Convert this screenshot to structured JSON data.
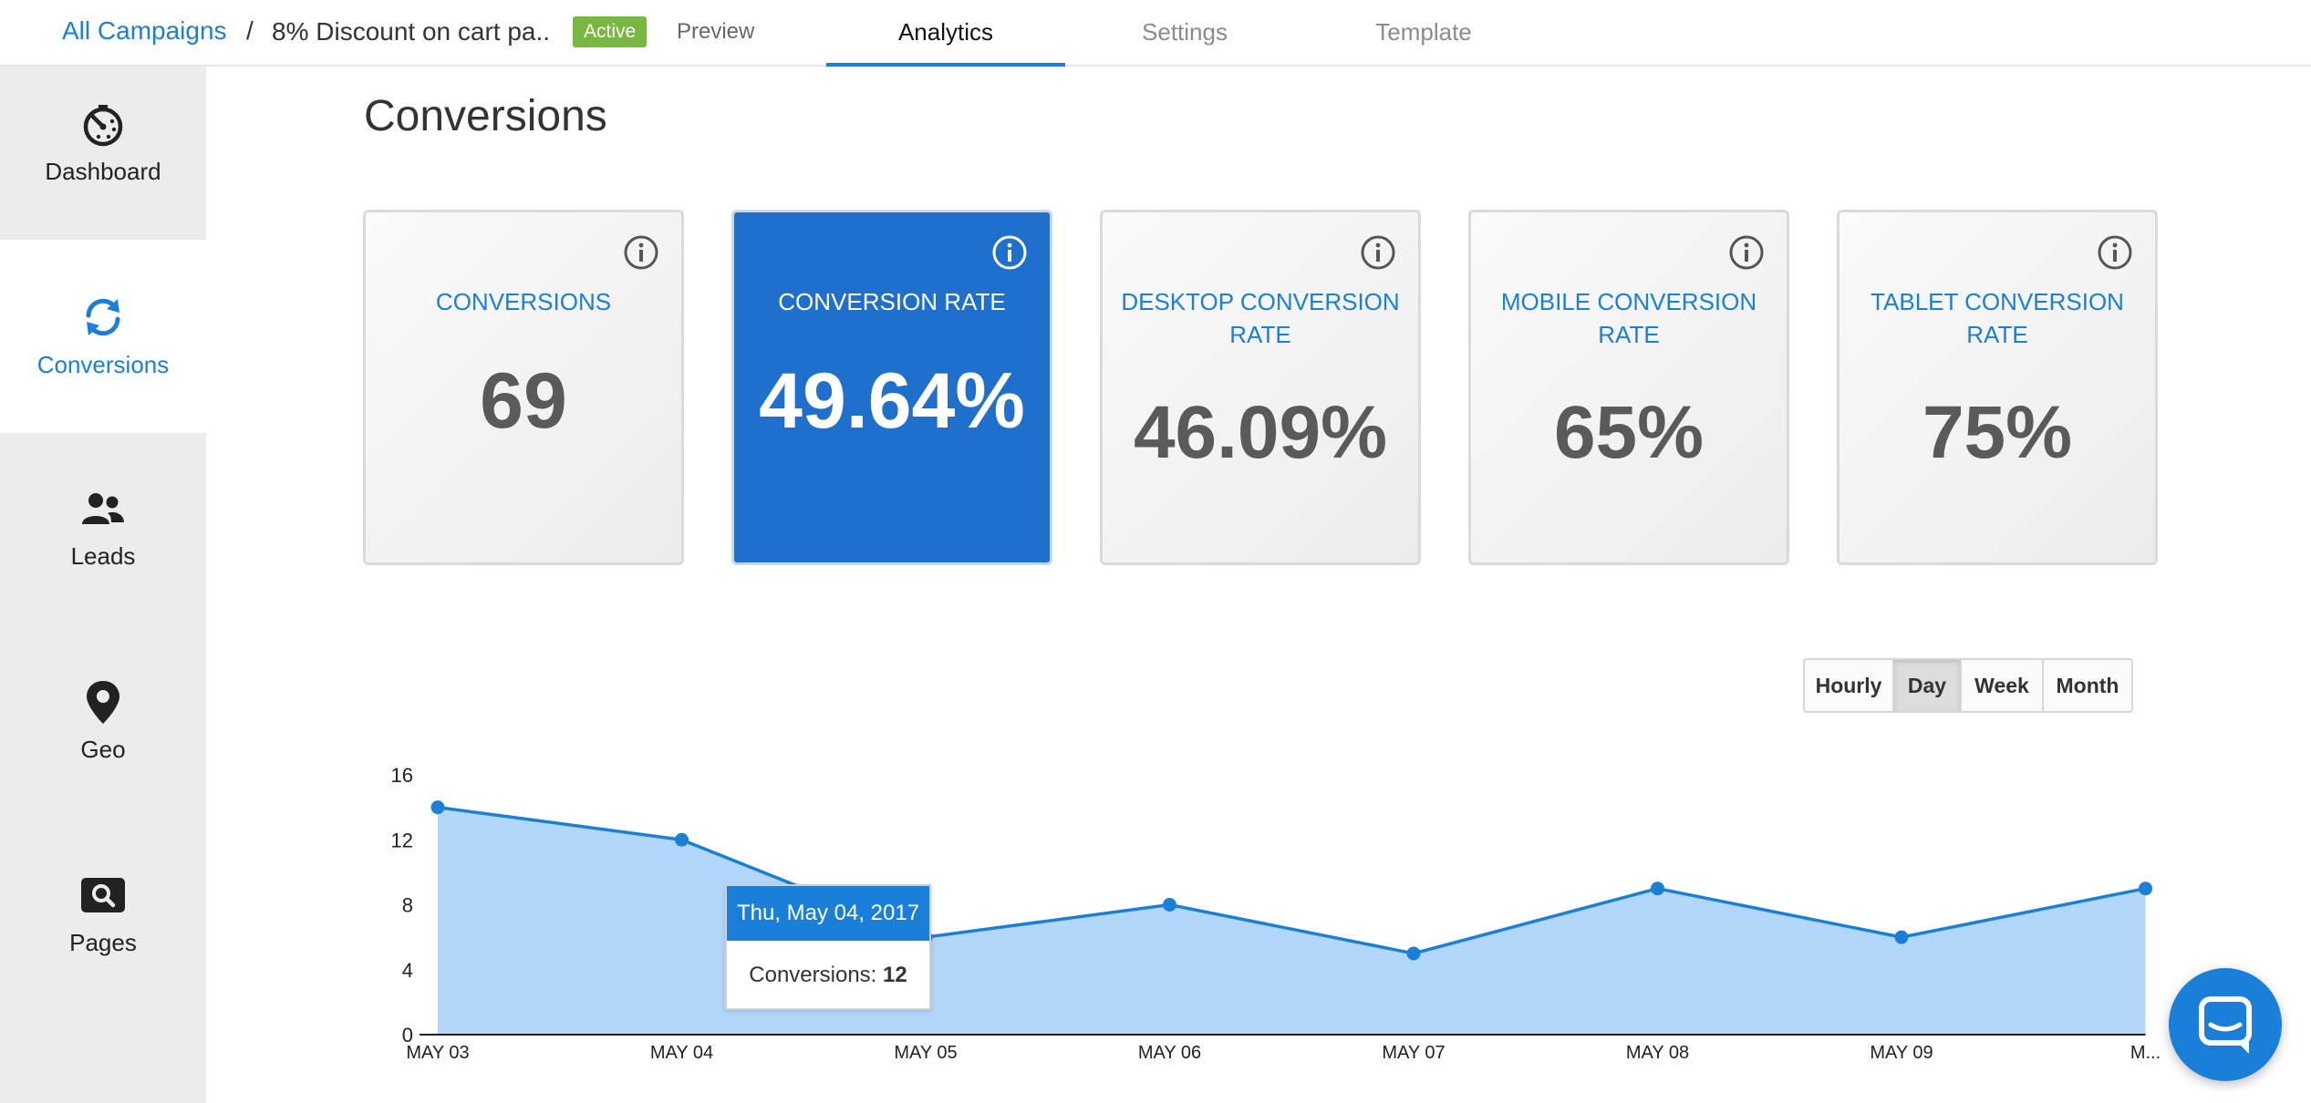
{
  "header": {
    "breadcrumb_link": "All Campaigns",
    "breadcrumb_separator": "/",
    "campaign_name": "8% Discount on cart pa..",
    "status_badge": "Active",
    "preview_link": "Preview",
    "tabs": [
      {
        "label": "Analytics",
        "active": true
      },
      {
        "label": "Settings",
        "active": false
      },
      {
        "label": "Template",
        "active": false
      }
    ]
  },
  "sidebar": {
    "items": [
      {
        "label": "Dashboard",
        "icon": "dashboard-gauge-icon",
        "active": false
      },
      {
        "label": "Conversions",
        "icon": "refresh-arrows-icon",
        "active": true
      },
      {
        "label": "Leads",
        "icon": "users-icon",
        "active": false
      },
      {
        "label": "Geo",
        "icon": "map-pin-icon",
        "active": false
      },
      {
        "label": "Pages",
        "icon": "search-page-icon",
        "active": false
      }
    ]
  },
  "main": {
    "title": "Conversions",
    "cards": [
      {
        "label": "CONVERSIONS",
        "value": "69",
        "highlight": false
      },
      {
        "label": "CONVERSION RATE",
        "value": "49.64%",
        "highlight": true
      },
      {
        "label": "DESKTOP CONVERSION RATE",
        "value": "46.09%",
        "highlight": false
      },
      {
        "label": "MOBILE CONVERSION RATE",
        "value": "65%",
        "highlight": false
      },
      {
        "label": "TABLET CONVERSION RATE",
        "value": "75%",
        "highlight": false
      }
    ],
    "time_toggle": {
      "options": [
        "Hourly",
        "Day",
        "Week",
        "Month"
      ],
      "selected": "Day"
    }
  },
  "chart_data": {
    "type": "area",
    "x": [
      "MAY 03",
      "MAY 04",
      "MAY 05",
      "MAY 06",
      "MAY 07",
      "MAY 08",
      "MAY 09",
      "M..."
    ],
    "series": [
      {
        "values": [
          14,
          12,
          6,
          8,
          5,
          9,
          6,
          9
        ]
      }
    ],
    "yticks": [
      0,
      4,
      8,
      12,
      16
    ],
    "ylim": [
      0,
      16
    ],
    "colors": {
      "line": "#1a7fd9",
      "fill": "#b3d7fb"
    },
    "tooltip": {
      "title": "Thu, May 04, 2017",
      "label": "Conversions:",
      "value": "12"
    }
  },
  "colors": {
    "accent": "#1a7fd9",
    "active_badge": "#78b841"
  }
}
